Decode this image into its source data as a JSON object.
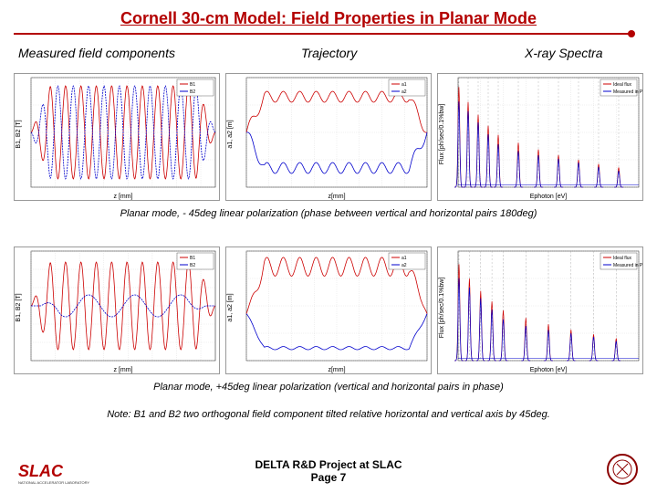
{
  "title": "Cornell 30-cm Model: Field Properties in Planar Mode",
  "columns": {
    "c1": "Measured field components",
    "c2": "Trajectory",
    "c3": "X-ray Spectra"
  },
  "caption1": "Planar mode, - 45deg linear polarization (phase between vertical and horizontal pairs 180deg)",
  "caption2": "Planar mode, +45deg linear polarization (vertical and horizontal pairs in phase)",
  "note": "Note: B1 and B2 two orthogonal field component tilted relative horizontal and vertical axis by 45deg.",
  "footer_line1": "DELTA R&D Project at SLAC",
  "footer_line2": "Page 7",
  "colors": {
    "title": "#b30000",
    "series_a": "#cc0000",
    "series_b": "#0000cc",
    "grid": "#cccccc",
    "axis": "#000000"
  },
  "charts": {
    "row1": {
      "field": {
        "xlabel": "z [mm]",
        "ylabel": "B1, B2 [T]",
        "xlim": [
          0,
          380
        ],
        "ylim": [
          -1.0,
          1.0
        ],
        "xtick": 50,
        "ytick": 0.5,
        "legend": [
          "B1",
          "B2"
        ],
        "series_a_freq": 12,
        "series_a_amp": 0.85,
        "series_a_color": "#cc0000",
        "series_b_freq": 12,
        "series_b_amp": 0.85,
        "series_b_phase": 3.14,
        "series_b_color": "#0000cc",
        "center_wiggle": {
          "amp": 0.15,
          "freq": 12,
          "color": "#0000cc"
        }
      },
      "trajectory": {
        "xlabel": "z[mm]",
        "ylabel": "a1, a2 [m]",
        "xlim": [
          0,
          400
        ],
        "ylim": [
          -2e-07,
          2e-07
        ],
        "xtick": 50,
        "legend": [
          "a1",
          "a2"
        ],
        "series_a": {
          "type": "plateau",
          "level": 1.3e-07,
          "ripple": 2e-08,
          "color": "#cc0000"
        },
        "series_b": {
          "type": "plateau",
          "level": -1.3e-07,
          "ripple": 2e-08,
          "color": "#0000cc"
        }
      },
      "spectra": {
        "xlabel": "Ephoton [eV]",
        "ylabel": "Flux [ph/sec/0.1%bw]",
        "xlim": [
          0,
          45000.0
        ],
        "ylim": [
          0,
          35000000000000.0
        ],
        "legend": [
          "Ideal flux",
          "Measured in Plane 2"
        ],
        "peaks_x": [
          200,
          2500,
          5000,
          7500,
          10000,
          15000,
          20000,
          25000,
          30000,
          35000,
          40000
        ],
        "peak_height": 32000000000000.0,
        "peak_decay": 0.85,
        "color_a": "#cc0000",
        "color_b": "#0000cc"
      }
    },
    "row2": {
      "field": {
        "xlabel": "z [mm]",
        "ylabel": "B1, B2 [T]",
        "xlim": [
          0,
          380
        ],
        "ylim": [
          -1.5,
          1.5
        ],
        "xtick": 50,
        "ytick": 0.5,
        "legend": [
          "B1",
          "B2"
        ],
        "series_a_freq": 12,
        "series_a_amp": 1.2,
        "series_a_color": "#cc0000",
        "series_b_amp": 0.3,
        "series_b_freq": 4,
        "series_b_color": "#0000cc"
      },
      "trajectory": {
        "xlabel": "z[mm]",
        "ylabel": "a1, a2 [m]",
        "xlim": [
          0,
          400
        ],
        "ylim": [
          -1.5e-07,
          2e-07
        ],
        "xtick": 50,
        "legend": [
          "a1",
          "a2"
        ],
        "series_a": {
          "type": "sine_offset",
          "freq": 11,
          "amp": 3e-08,
          "offset": 1.5e-07,
          "color": "#cc0000"
        },
        "series_b": {
          "type": "plateau",
          "level": -1.1e-07,
          "ripple": 5e-09,
          "color": "#0000cc"
        }
      },
      "spectra": {
        "xlabel": "Ephoton [eV]",
        "ylabel": "Flux [ph/sec/0.1%bw]",
        "xlim": [
          0,
          40000.0
        ],
        "ylim": [
          0,
          25000000000000.0
        ],
        "legend": [
          "Ideal flux",
          "Measured in Plane 1"
        ],
        "peaks_x": [
          200,
          2500,
          5000,
          7500,
          10000,
          15000,
          20000,
          25000,
          30000,
          35000
        ],
        "peak_height": 22000000000000.0,
        "peak_decay": 0.85,
        "color_a": "#cc0000",
        "color_b": "#0000cc"
      }
    }
  }
}
